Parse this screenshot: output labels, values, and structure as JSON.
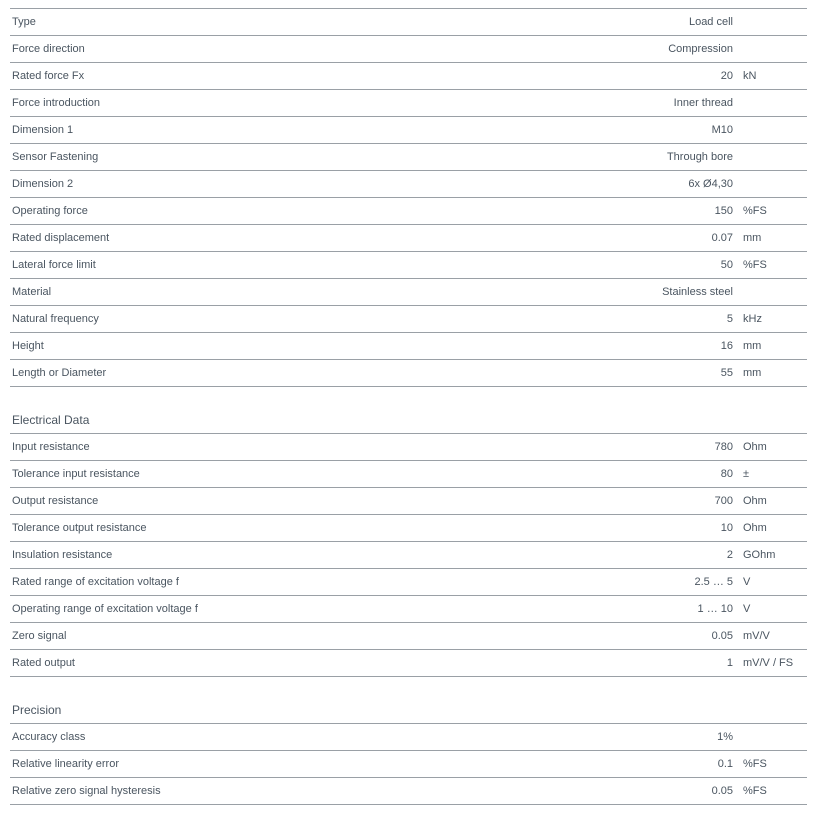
{
  "sections": [
    {
      "title": null,
      "rows": [
        {
          "label": "Type",
          "value": "Load cell",
          "unit": ""
        },
        {
          "label": "Force direction",
          "value": "Compression",
          "unit": ""
        },
        {
          "label": "Rated force Fx",
          "value": "20",
          "unit": "kN"
        },
        {
          "label": "Force introduction",
          "value": "Inner thread",
          "unit": ""
        },
        {
          "label": "Dimension 1",
          "value": "M10",
          "unit": ""
        },
        {
          "label": "Sensor Fastening",
          "value": "Through bore",
          "unit": ""
        },
        {
          "label": "Dimension 2",
          "value": "6x Ø4,30",
          "unit": ""
        },
        {
          "label": "Operating force",
          "value": "150",
          "unit": "%FS"
        },
        {
          "label": "Rated displacement",
          "value": "0.07",
          "unit": "mm"
        },
        {
          "label": "Lateral force limit",
          "value": "50",
          "unit": "%FS"
        },
        {
          "label": "Material",
          "value": "Stainless steel",
          "unit": ""
        },
        {
          "label": "Natural frequency",
          "value": "5",
          "unit": "kHz"
        },
        {
          "label": "Height",
          "value": "16",
          "unit": "mm"
        },
        {
          "label": "Length or Diameter",
          "value": "55",
          "unit": "mm"
        }
      ]
    },
    {
      "title": "Electrical Data",
      "rows": [
        {
          "label": "Input resistance",
          "value": "780",
          "unit": "Ohm"
        },
        {
          "label": "Tolerance input resistance",
          "value": "80",
          "unit": "±"
        },
        {
          "label": "Output resistance",
          "value": "700",
          "unit": "Ohm"
        },
        {
          "label": "Tolerance output resistance",
          "value": "10",
          "unit": "Ohm"
        },
        {
          "label": "Insulation resistance",
          "value": "2",
          "unit": "GOhm"
        },
        {
          "label": "Rated range of excitation voltage f",
          "value": "2.5 … 5",
          "unit": "V"
        },
        {
          "label": "Operating range of excitation voltage f",
          "value": "1 … 10",
          "unit": "V"
        },
        {
          "label": "Zero signal",
          "value": "0.05",
          "unit": "mV/V"
        },
        {
          "label": "Rated output",
          "value": "1",
          "unit": "mV/V / FS"
        }
      ]
    },
    {
      "title": "Precision",
      "rows": [
        {
          "label": "Accuracy class",
          "value": "1%",
          "unit": ""
        },
        {
          "label": "Relative linearity error",
          "value": "0.1",
          "unit": "%FS"
        },
        {
          "label": "Relative zero signal hysteresis",
          "value": "0.05",
          "unit": "%FS"
        }
      ]
    }
  ]
}
